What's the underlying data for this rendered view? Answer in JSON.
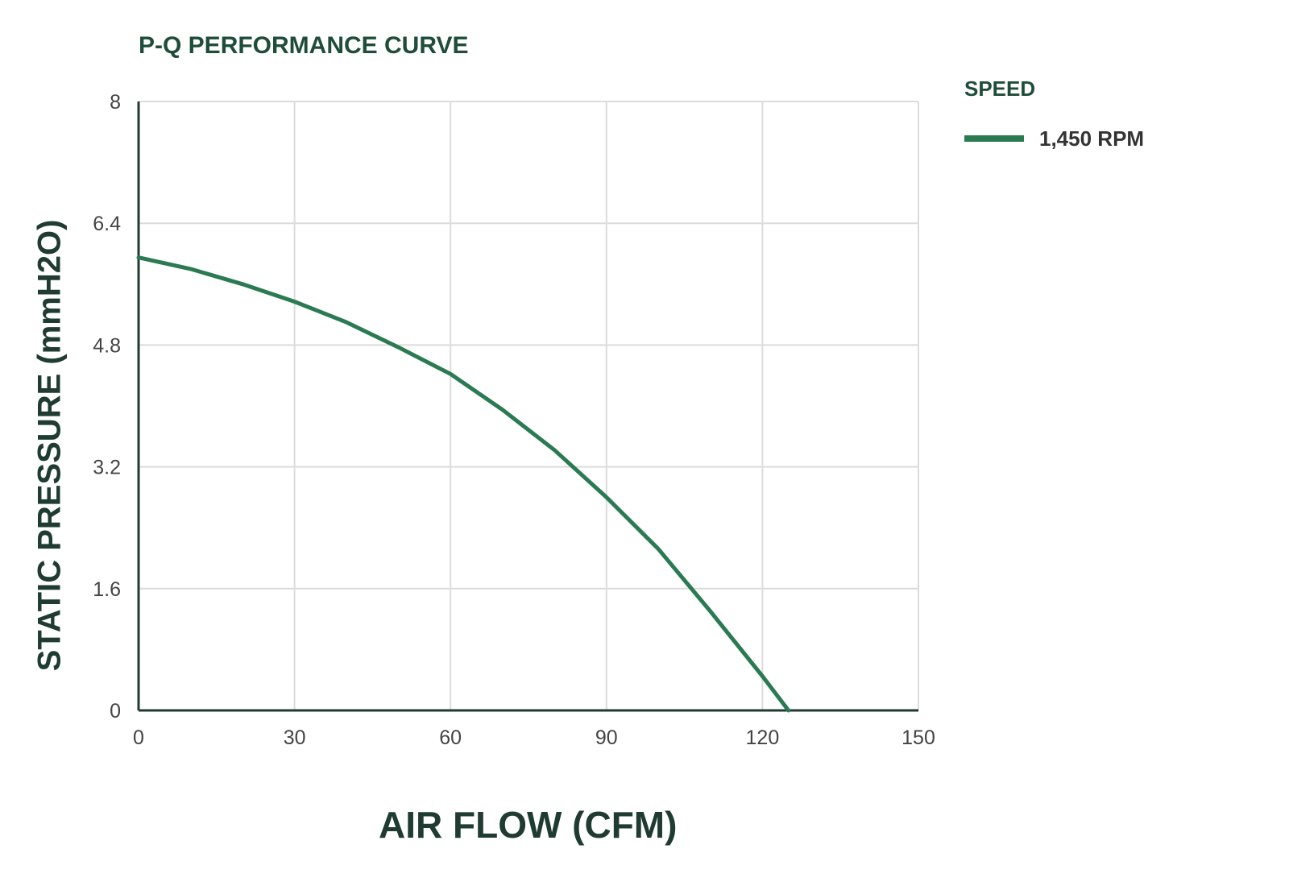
{
  "chart_data": {
    "type": "line",
    "title": "P-Q PERFORMANCE CURVE",
    "xlabel": "AIR FLOW (CFM)",
    "ylabel": "STATIC PRESSURE (mmH2O)",
    "xlim": [
      0,
      150
    ],
    "ylim": [
      0,
      8
    ],
    "xticks": [
      0,
      30,
      60,
      90,
      120,
      150
    ],
    "yticks": [
      0,
      1.6,
      3.2,
      4.8,
      6.4,
      8
    ],
    "ytick_labels": [
      "0",
      "1.6",
      "3.2",
      "4.8",
      "6.4",
      "8"
    ],
    "grid": true,
    "legend_title": "SPEED",
    "legend_position": "right",
    "series": [
      {
        "name": "1,450 RPM",
        "color": "#2a7a52",
        "x": [
          0,
          10,
          20,
          30,
          40,
          50,
          60,
          70,
          80,
          90,
          100,
          110,
          120,
          125
        ],
        "y": [
          5.95,
          5.8,
          5.6,
          5.37,
          5.1,
          4.77,
          4.42,
          3.95,
          3.42,
          2.8,
          2.12,
          1.3,
          0.45,
          0
        ]
      }
    ]
  }
}
